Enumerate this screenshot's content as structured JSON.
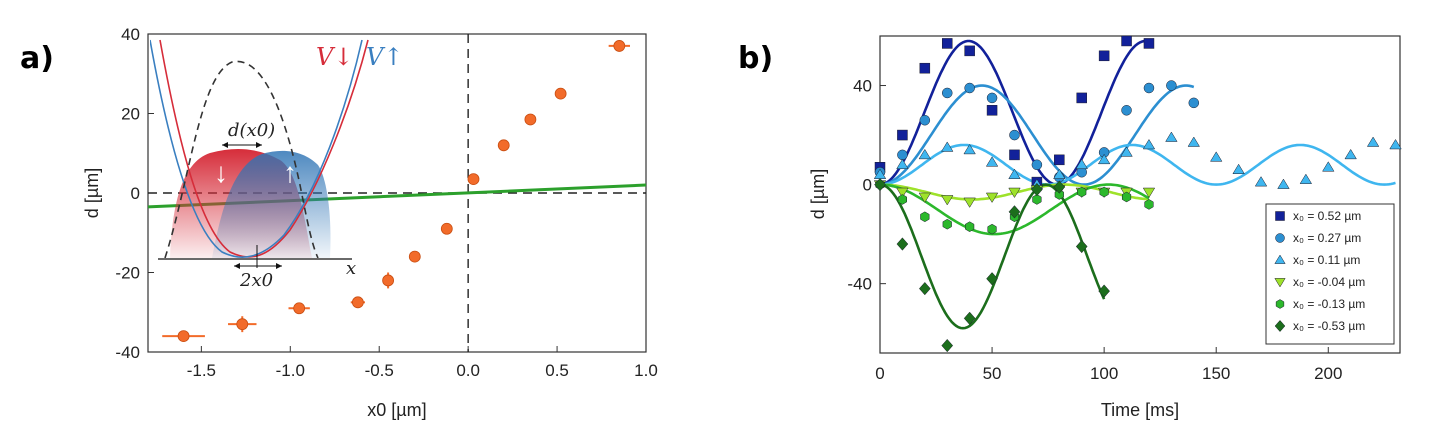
{
  "panels": {
    "a": "a)",
    "b": "b)"
  },
  "colors": {
    "orange": "#f26b2a",
    "green_line": "#2ca02c",
    "red": "#d62d3a",
    "blue": "#3a7fc0",
    "s1": "#12219a",
    "s2": "#2c8fd1",
    "s3": "#3fb6ef",
    "s4": "#9ee22a",
    "s5": "#2cb82c",
    "s6": "#1c6e1c"
  },
  "chart_data": [
    {
      "type": "scatter",
      "id": "a",
      "xlabel": "x0 [µm]",
      "ylabel": "d [µm]",
      "xlim": [
        -1.8,
        1.0
      ],
      "ylim": [
        -40,
        40
      ],
      "xticks": [
        "-1.5",
        "-1.0",
        "-0.5",
        "0.0",
        "0.5",
        "1.0"
      ],
      "xtick_values": [
        -1.5,
        -1.0,
        -0.5,
        0.0,
        0.5,
        1.0
      ],
      "yticks": [
        "-40",
        "-20",
        "0",
        "20",
        "40"
      ],
      "ytick_values": [
        -40,
        -20,
        0,
        20,
        40
      ],
      "points": [
        {
          "x": -1.6,
          "y": -36,
          "xerr": 0.12
        },
        {
          "x": -1.27,
          "y": -33,
          "xerr": 0.08,
          "yerr": 2
        },
        {
          "x": -0.95,
          "y": -29,
          "xerr": 0.06
        },
        {
          "x": -0.62,
          "y": -27.5,
          "xerr": 0.04
        },
        {
          "x": -0.45,
          "y": -22,
          "yerr": 2
        },
        {
          "x": -0.3,
          "y": -16
        },
        {
          "x": -0.12,
          "y": -9
        },
        {
          "x": 0.03,
          "y": 3.5
        },
        {
          "x": 0.2,
          "y": 12
        },
        {
          "x": 0.35,
          "y": 18.5
        },
        {
          "x": 0.52,
          "y": 25,
          "xerr": 0.03
        },
        {
          "x": 0.85,
          "y": 37,
          "xerr": 0.06
        }
      ],
      "fit_line": {
        "x": [
          -1.8,
          1.0
        ],
        "y": [
          -3.5,
          2.0
        ]
      },
      "vline_x": 0.0,
      "hline_y": 0.0,
      "inset": {
        "label_down": "V↓",
        "label_up": "V↑",
        "label_d": "d(x0)",
        "label_2x0": "2x0",
        "label_x": "x",
        "arrow_down": "↓",
        "arrow_up": "↑"
      }
    },
    {
      "type": "line",
      "id": "b",
      "xlabel": "Time [ms]",
      "ylabel": "d [µm]",
      "xlim": [
        0,
        232
      ],
      "ylim": [
        -68,
        60
      ],
      "xticks": [
        "0",
        "50",
        "100",
        "150",
        "200"
      ],
      "xtick_values": [
        0,
        50,
        100,
        150,
        200
      ],
      "yticks": [
        "-40",
        "0",
        "40"
      ],
      "ytick_values": [
        -40,
        0,
        40
      ],
      "series": [
        {
          "name": "x₀ =  0.52 µm",
          "marker": "square",
          "color_key": "s1",
          "points": [
            [
              0,
              7
            ],
            [
              10,
              20
            ],
            [
              20,
              47
            ],
            [
              30,
              57
            ],
            [
              40,
              54
            ],
            [
              50,
              30
            ],
            [
              60,
              12
            ],
            [
              70,
              1
            ],
            [
              80,
              10
            ],
            [
              90,
              35
            ],
            [
              100,
              52
            ],
            [
              110,
              58
            ],
            [
              120,
              57
            ]
          ],
          "fit": {
            "amp": 29,
            "offset": 29,
            "period": 79,
            "t_start": 0,
            "t_end": 120
          }
        },
        {
          "name": "x₀ =  0.27 µm",
          "marker": "circle",
          "color_key": "s2",
          "points": [
            [
              0,
              5
            ],
            [
              10,
              12
            ],
            [
              20,
              26
            ],
            [
              30,
              37
            ],
            [
              40,
              39
            ],
            [
              50,
              35
            ],
            [
              60,
              20
            ],
            [
              70,
              8
            ],
            [
              80,
              3
            ],
            [
              90,
              5
            ],
            [
              100,
              13
            ],
            [
              110,
              30
            ],
            [
              120,
              39
            ],
            [
              130,
              40
            ],
            [
              140,
              33
            ]
          ],
          "fit": {
            "amp": 20,
            "offset": 20,
            "period": 91,
            "t_start": 0,
            "t_end": 140
          }
        },
        {
          "name": "x₀ =  0.11 µm",
          "marker": "triangle-up",
          "color_key": "s3",
          "points": [
            [
              0,
              4
            ],
            [
              10,
              8
            ],
            [
              20,
              12
            ],
            [
              30,
              15
            ],
            [
              40,
              14
            ],
            [
              50,
              9
            ],
            [
              60,
              4
            ],
            [
              70,
              0
            ],
            [
              80,
              4
            ],
            [
              90,
              8
            ],
            [
              100,
              10
            ],
            [
              110,
              13
            ],
            [
              120,
              16
            ],
            [
              130,
              19
            ],
            [
              140,
              17
            ],
            [
              150,
              11
            ],
            [
              160,
              6
            ],
            [
              170,
              1
            ],
            [
              180,
              0
            ],
            [
              190,
              2
            ],
            [
              200,
              7
            ],
            [
              210,
              12
            ],
            [
              220,
              17
            ],
            [
              230,
              16
            ]
          ],
          "fit": {
            "amp": 8,
            "offset": 8,
            "period": 75,
            "t_start": 0,
            "t_end": 230
          }
        },
        {
          "name": "x₀ = -0.04 µm",
          "marker": "triangle-down",
          "color_key": "s4",
          "points": [
            [
              0,
              0
            ],
            [
              10,
              -3
            ],
            [
              20,
              -5
            ],
            [
              30,
              -6
            ],
            [
              40,
              -7
            ],
            [
              50,
              -5
            ],
            [
              60,
              -3
            ],
            [
              70,
              -2
            ],
            [
              80,
              -2
            ],
            [
              90,
              -3
            ],
            [
              100,
              -3
            ],
            [
              110,
              -3
            ],
            [
              120,
              -3
            ]
          ],
          "fit": {
            "amp": -3,
            "offset": -3,
            "period": 82,
            "t_start": 0,
            "t_end": 120
          }
        },
        {
          "name": "x₀ = -0.13 µm",
          "marker": "hexagon",
          "color_key": "s5",
          "points": [
            [
              0,
              0
            ],
            [
              10,
              -6
            ],
            [
              20,
              -13
            ],
            [
              30,
              -16
            ],
            [
              40,
              -17
            ],
            [
              50,
              -18
            ],
            [
              60,
              -13
            ],
            [
              70,
              -6
            ],
            [
              80,
              -4
            ],
            [
              90,
              -3
            ],
            [
              100,
              -3
            ],
            [
              110,
              -5
            ],
            [
              120,
              -8
            ]
          ],
          "fit": {
            "amp": -10,
            "offset": -10,
            "period": 102,
            "t_start": 0,
            "t_end": 120
          }
        },
        {
          "name": "x₀ = -0.53 µm",
          "marker": "diamond",
          "color_key": "s6",
          "points": [
            [
              0,
              0
            ],
            [
              10,
              -24
            ],
            [
              20,
              -42
            ],
            [
              30,
              -65
            ],
            [
              40,
              -54
            ],
            [
              50,
              -38
            ],
            [
              60,
              -11
            ],
            [
              70,
              -2
            ],
            [
              80,
              -1
            ],
            [
              90,
              -25
            ],
            [
              100,
              -43
            ]
          ],
          "fit": {
            "amp": -29,
            "offset": -29,
            "period": 74,
            "t_start": 0,
            "t_end": 100
          }
        }
      ]
    }
  ]
}
